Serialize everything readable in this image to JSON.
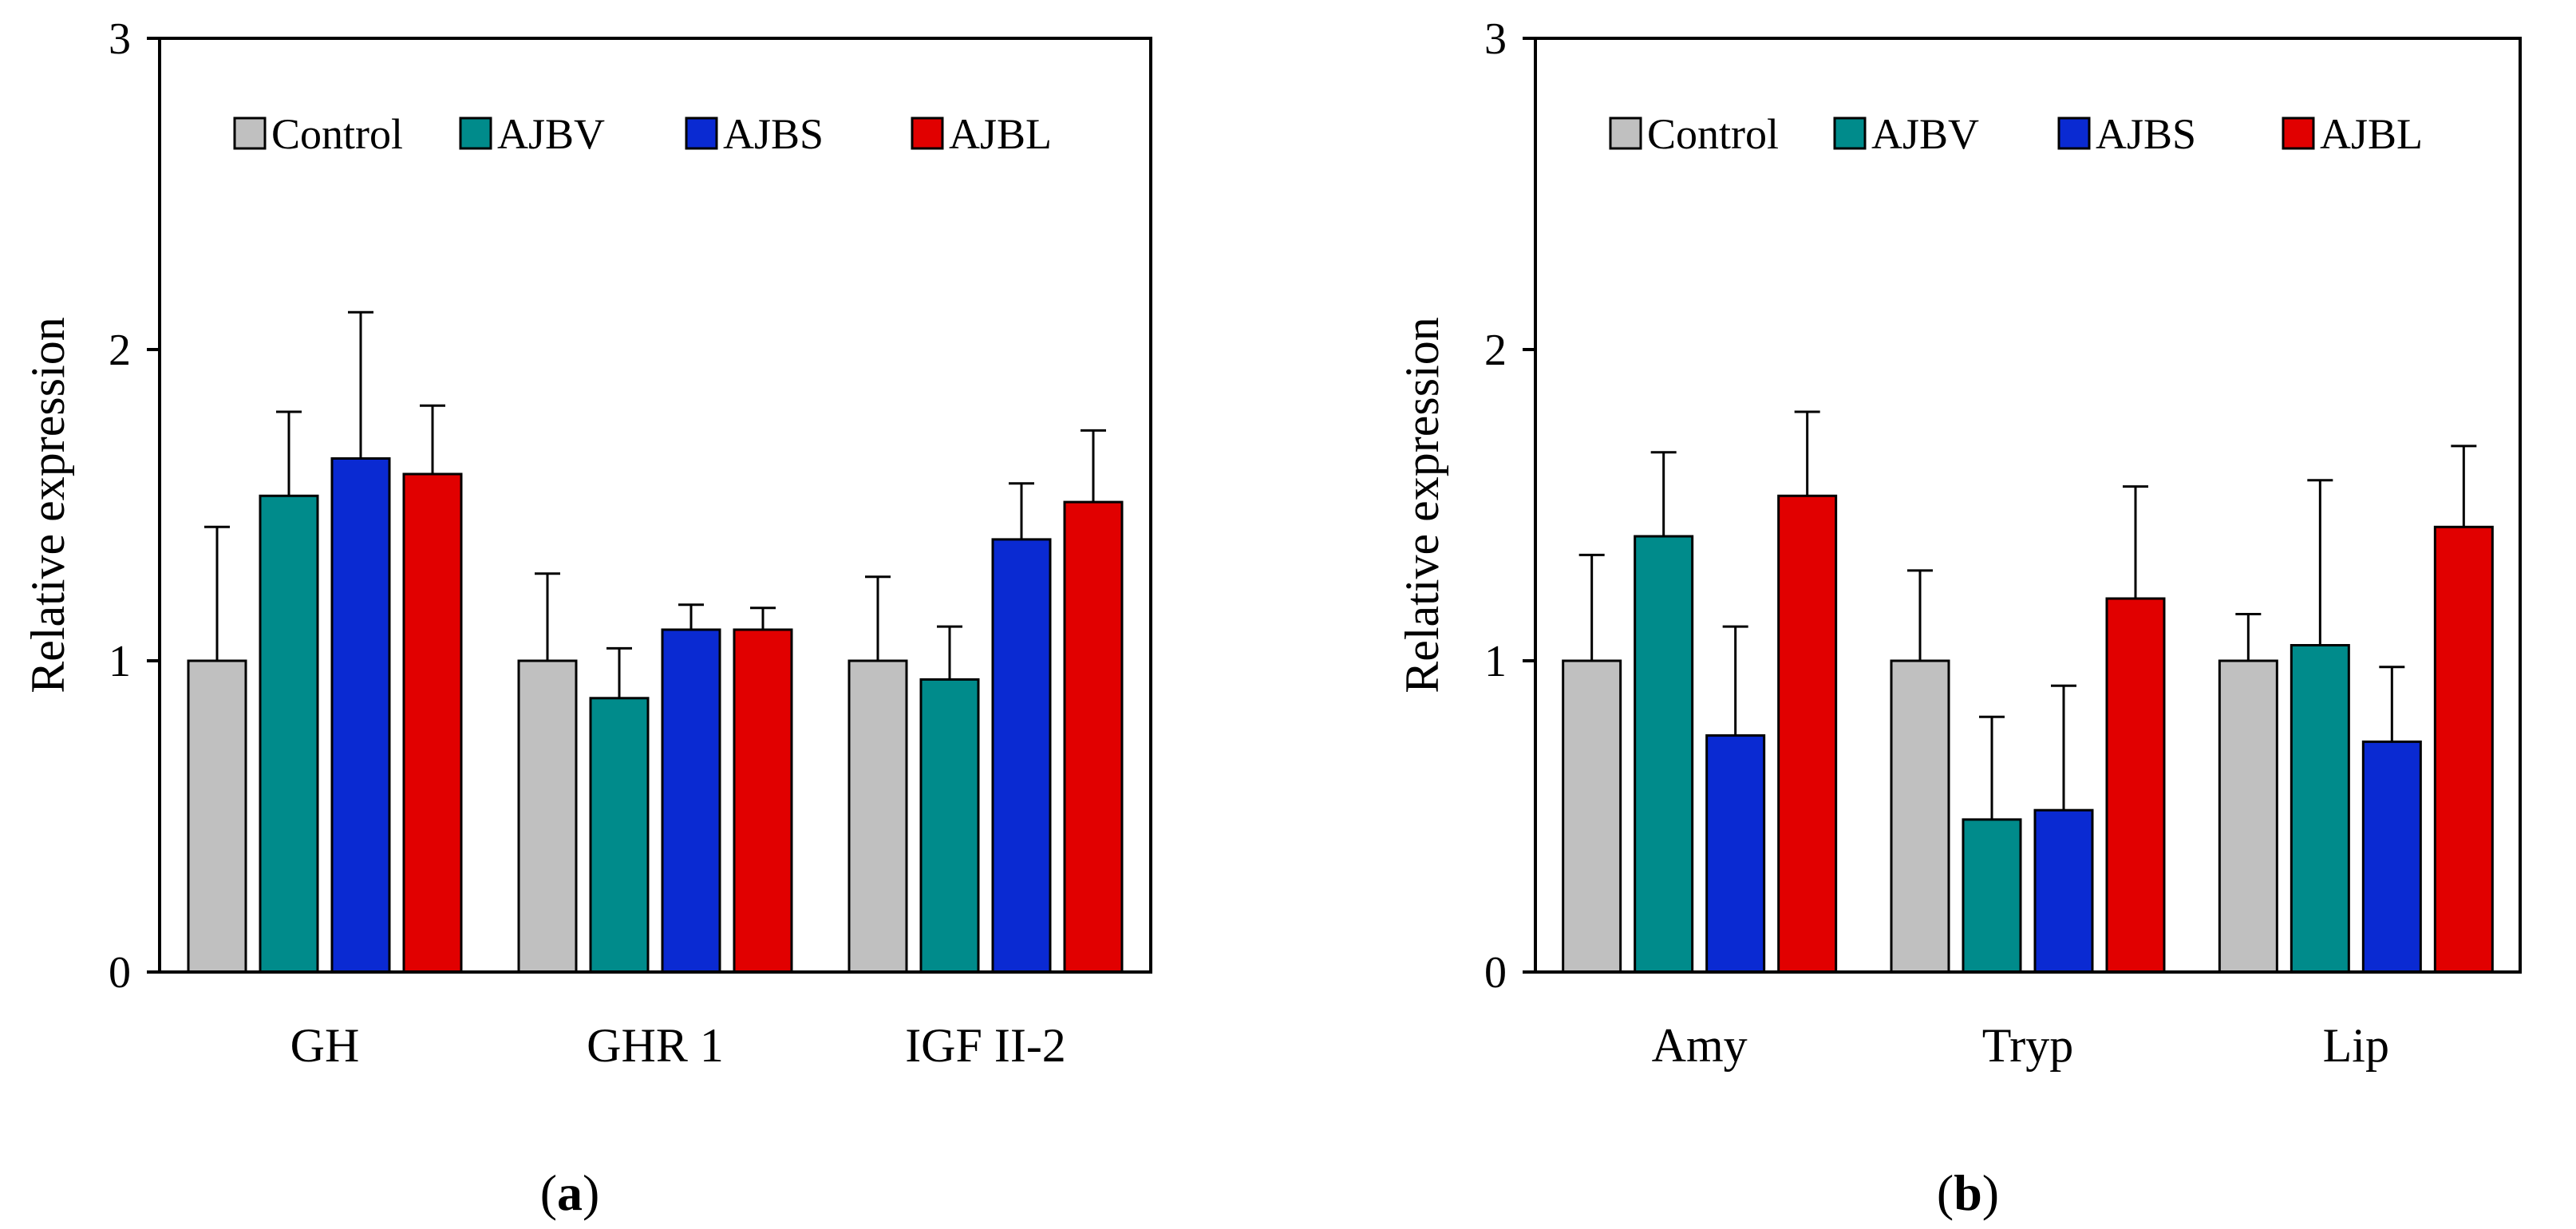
{
  "colors": {
    "Control": "#c0c0c0",
    "AJBV": "#008b8b",
    "AJBS": "#0a2ad2",
    "AJBL": "#e10000"
  },
  "chart_data": [
    {
      "type": "bar",
      "panel": "(a)",
      "caption": {
        "open": "(",
        "letter": "a",
        "close": ")"
      },
      "ylabel": "Relative expression",
      "ylim": [
        0,
        3
      ],
      "yticks": [
        "0",
        "1",
        "2",
        "3"
      ],
      "categories": [
        "GH",
        "GHR 1",
        "IGF II-2"
      ],
      "legend_position": "top",
      "series": [
        {
          "name": "Control",
          "values": [
            1.0,
            1.0,
            1.0
          ],
          "errors": [
            0.43,
            0.28,
            0.27
          ]
        },
        {
          "name": "AJBV",
          "values": [
            1.53,
            0.88,
            0.94
          ],
          "errors": [
            0.27,
            0.16,
            0.17
          ]
        },
        {
          "name": "AJBS",
          "values": [
            1.65,
            1.1,
            1.39
          ],
          "errors": [
            0.47,
            0.08,
            0.18
          ]
        },
        {
          "name": "AJBL",
          "values": [
            1.6,
            1.1,
            1.51
          ],
          "errors": [
            0.22,
            0.07,
            0.23
          ]
        }
      ]
    },
    {
      "type": "bar",
      "panel": "(b)",
      "caption": {
        "open": "(",
        "letter": "b",
        "close": ")"
      },
      "ylabel": "Relative expression",
      "ylim": [
        0,
        3
      ],
      "yticks": [
        "0",
        "1",
        "2",
        "3"
      ],
      "categories": [
        "Amy",
        "Tryp",
        "Lip"
      ],
      "legend_position": "top",
      "series": [
        {
          "name": "Control",
          "values": [
            1.0,
            1.0,
            1.0
          ],
          "errors": [
            0.34,
            0.29,
            0.15
          ]
        },
        {
          "name": "AJBV",
          "values": [
            1.4,
            0.49,
            1.05
          ],
          "errors": [
            0.27,
            0.33,
            0.53
          ]
        },
        {
          "name": "AJBS",
          "values": [
            0.76,
            0.52,
            0.74
          ],
          "errors": [
            0.35,
            0.4,
            0.24
          ]
        },
        {
          "name": "AJBL",
          "values": [
            1.53,
            1.2,
            1.43
          ],
          "errors": [
            0.27,
            0.36,
            0.26
          ]
        }
      ]
    }
  ]
}
